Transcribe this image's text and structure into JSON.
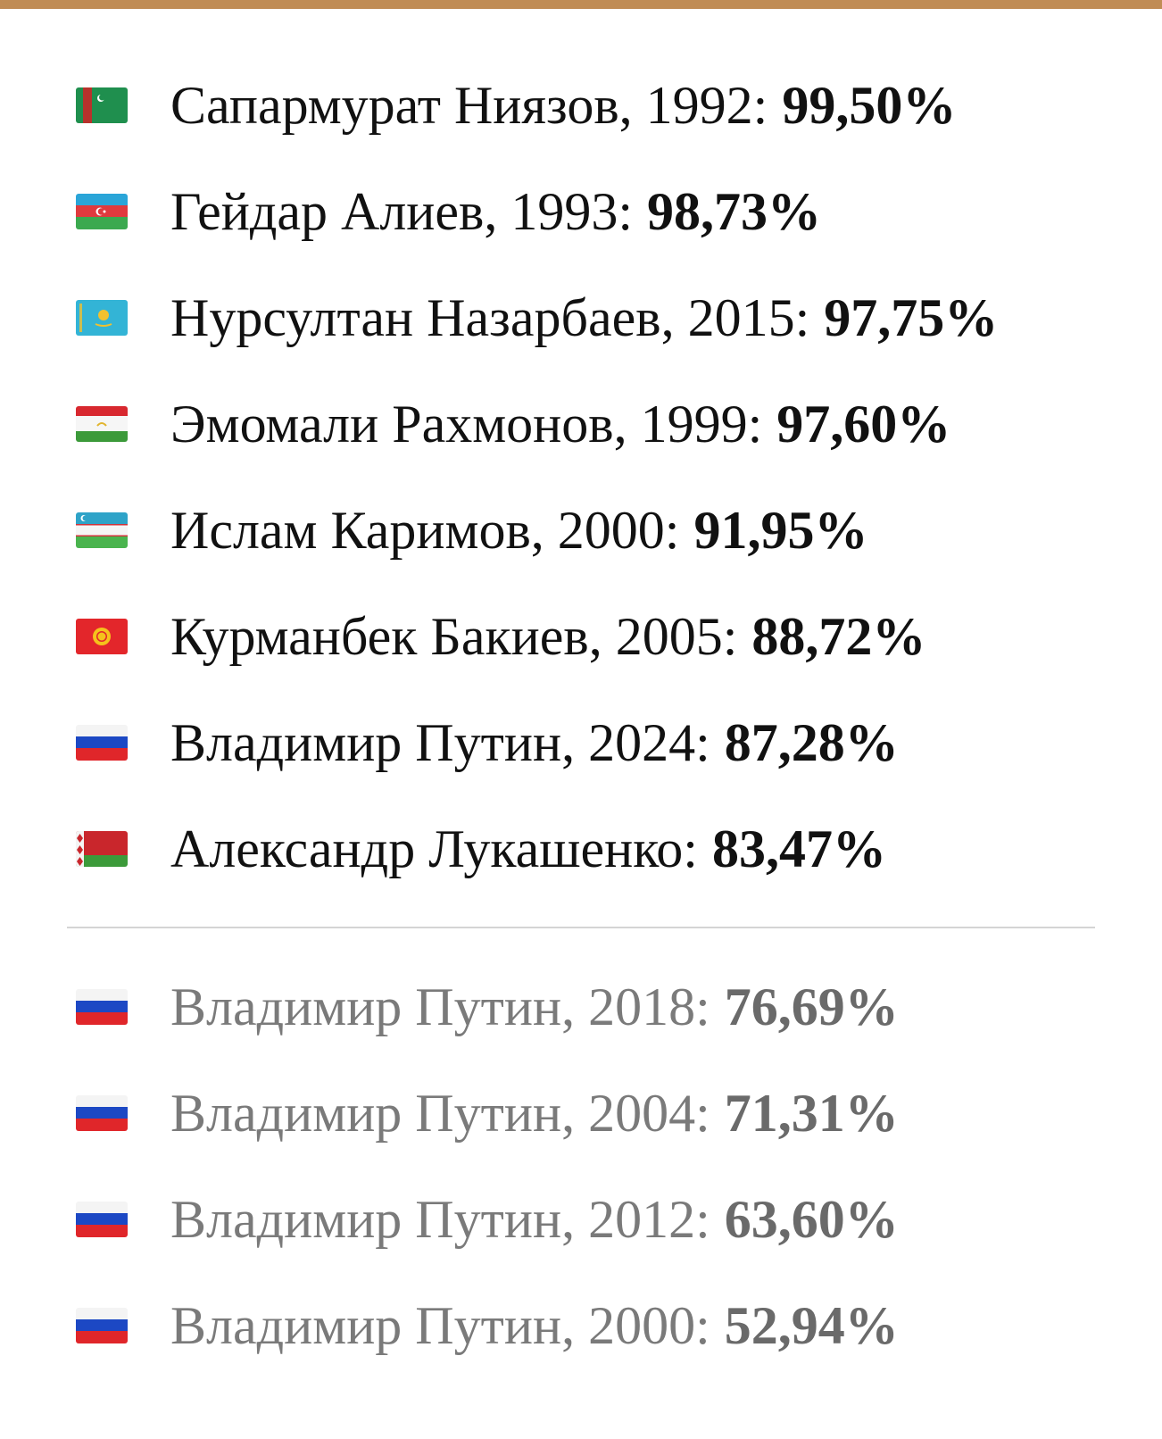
{
  "main": [
    {
      "label": "Сапармурат Ниязов, 1992:",
      "value": "99,50%"
    },
    {
      "label": "Гейдар Алиев, 1993:",
      "value": "98,73%"
    },
    {
      "label": "Нурсултан Назарбаев, 2015:",
      "value": "97,75%"
    },
    {
      "label": "Эмомали Рахмонов, 1999:",
      "value": "97,60%"
    },
    {
      "label": "Ислам Каримов, 2000:",
      "value": "91,95%"
    },
    {
      "label": "Курманбек Бакиев, 2005:",
      "value": "88,72%"
    },
    {
      "label": "Владимир Путин, 2024:",
      "value": "87,28%"
    },
    {
      "label": "Александр Лукашенко:",
      "value": "83,47%"
    }
  ],
  "secondary": [
    {
      "label": "Владимир Путин, 2018:",
      "value": "76,69%"
    },
    {
      "label": "Владимир Путин, 2004:",
      "value": "71,31%"
    },
    {
      "label": "Владимир Путин, 2012:",
      "value": "63,60%"
    },
    {
      "label": "Владимир Путин, 2000:",
      "value": "52,94%"
    }
  ]
}
